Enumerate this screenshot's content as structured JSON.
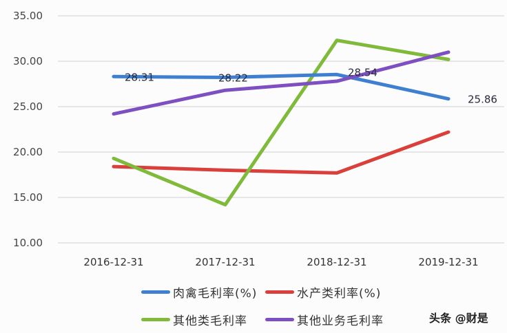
{
  "chart_data": {
    "type": "line",
    "title": "",
    "xlabel": "",
    "ylabel": "",
    "categories": [
      "2016-12-31",
      "2017-12-31",
      "2018-12-31",
      "2019-12-31"
    ],
    "yticks": [
      "10.00",
      "15.00",
      "20.00",
      "25.00",
      "30.00",
      "35.00"
    ],
    "ylim": [
      10,
      35
    ],
    "grid": true,
    "legend_position": "bottom",
    "series": [
      {
        "name": "肉禽毛利率(%)",
        "color": "#3f7fd0",
        "values": [
          28.31,
          28.22,
          28.54,
          25.86
        ],
        "data_labels": [
          "28.31",
          "28.22",
          "28.54",
          "25.86"
        ]
      },
      {
        "name": "水产类利率(%)",
        "color": "#d9403c",
        "values": [
          18.4,
          18.0,
          17.7,
          22.2
        ]
      },
      {
        "name": "其他类毛利率",
        "color": "#7fba3a",
        "values": [
          19.3,
          14.2,
          32.3,
          30.2
        ]
      },
      {
        "name": "其他业务毛利率",
        "color": "#7d4fc0",
        "values": [
          24.2,
          26.8,
          27.8,
          31.0
        ]
      }
    ]
  },
  "legend": {
    "items": [
      {
        "label": "肉禽毛利率(%)",
        "color": "#3f7fd0"
      },
      {
        "label": "水产类利率(%)",
        "color": "#d9403c"
      },
      {
        "label": "其他类毛利率",
        "color": "#7fba3a"
      },
      {
        "label": "其他业务毛利率",
        "color": "#7d4fc0"
      }
    ]
  },
  "watermark": "头条 @财是"
}
